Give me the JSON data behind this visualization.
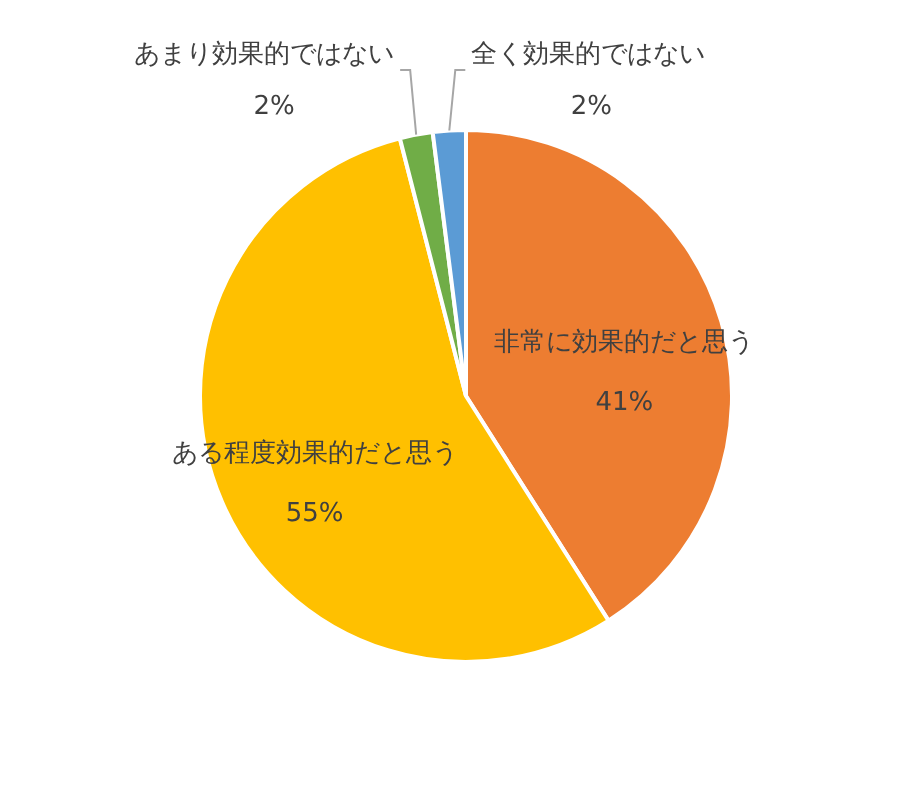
{
  "chart_data": {
    "type": "pie",
    "categories": [
      "非常に効果的だと思う",
      "ある程度効果的だと思う",
      "あまり効果的ではない",
      "全く効果的ではない"
    ],
    "values": [
      41,
      55,
      2,
      2
    ],
    "colors": [
      "#ed7d31",
      "#ffc000",
      "#70ad47",
      "#5b9bd5"
    ],
    "value_labels": [
      "41%",
      "55%",
      "2%",
      "2%"
    ]
  }
}
